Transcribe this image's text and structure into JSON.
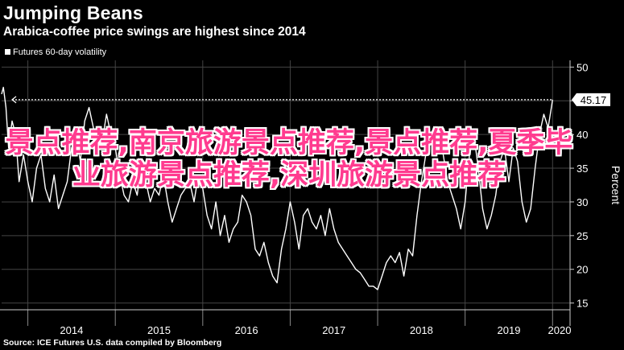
{
  "header": {
    "title": "Jumping Beans",
    "subtitle": "Arabica-coffee price swings are highest since 2014"
  },
  "footer": {
    "source": "Source: ICE Futures U.S. data compiled by Bloomberg"
  },
  "overlay_text": "景点推荐,南京旅游景点推荐,景点推荐,夏季毕业旅游景点推荐,深圳旅游景点推荐",
  "colors": {
    "background": "#000000",
    "line": "#ffffff",
    "grid": "#444444",
    "overlay": "#ff3b8f"
  },
  "chart_data": {
    "type": "line",
    "legend": [
      "Futures 60-day volatility"
    ],
    "legend_position": "top-left",
    "ylabel": "Percent",
    "ylim": [
      14,
      51
    ],
    "yticks": [
      15,
      20,
      25,
      30,
      35,
      40,
      45,
      50
    ],
    "xlim": [
      2013.7,
      2020.2
    ],
    "xticks": [
      "2014",
      "2015",
      "2016",
      "2017",
      "2018",
      "2019",
      "2020"
    ],
    "last_value_label": "45.17",
    "reference_line": 45.17,
    "grid": true,
    "series": [
      {
        "name": "Futures 60-day volatility",
        "x": [
          2013.7,
          2013.72,
          2013.75,
          2013.78,
          2013.82,
          2013.86,
          2013.9,
          2013.95,
          2014.0,
          2014.05,
          2014.1,
          2014.15,
          2014.2,
          2014.25,
          2014.3,
          2014.35,
          2014.4,
          2014.45,
          2014.5,
          2014.55,
          2014.6,
          2014.65,
          2014.7,
          2014.75,
          2014.8,
          2014.85,
          2014.9,
          2014.95,
          2015.0,
          2015.05,
          2015.1,
          2015.15,
          2015.2,
          2015.25,
          2015.3,
          2015.35,
          2015.4,
          2015.45,
          2015.5,
          2015.55,
          2015.6,
          2015.65,
          2015.7,
          2015.75,
          2015.8,
          2015.85,
          2015.9,
          2015.95,
          2016.0,
          2016.05,
          2016.1,
          2016.15,
          2016.2,
          2016.25,
          2016.3,
          2016.35,
          2016.4,
          2016.45,
          2016.5,
          2016.55,
          2016.6,
          2016.65,
          2016.7,
          2016.75,
          2016.8,
          2016.85,
          2016.9,
          2016.95,
          2017.0,
          2017.05,
          2017.1,
          2017.15,
          2017.2,
          2017.25,
          2017.3,
          2017.35,
          2017.4,
          2017.45,
          2017.5,
          2017.55,
          2017.6,
          2017.65,
          2017.7,
          2017.75,
          2017.8,
          2017.85,
          2017.9,
          2017.95,
          2018.0,
          2018.05,
          2018.1,
          2018.15,
          2018.2,
          2018.25,
          2018.3,
          2018.35,
          2018.4,
          2018.45,
          2018.5,
          2018.55,
          2018.6,
          2018.65,
          2018.7,
          2018.75,
          2018.8,
          2018.85,
          2018.9,
          2018.95,
          2019.0,
          2019.05,
          2019.1,
          2019.15,
          2019.2,
          2019.25,
          2019.3,
          2019.35,
          2019.4,
          2019.45,
          2019.5,
          2019.55,
          2019.6,
          2019.65,
          2019.7,
          2019.75,
          2019.8,
          2019.85,
          2019.9,
          2019.95,
          2020.0
        ],
        "values": [
          46,
          47,
          44,
          38,
          42,
          40,
          33,
          37,
          33,
          30,
          35,
          37,
          32,
          30,
          34,
          29,
          31,
          33,
          38,
          40,
          36,
          42,
          44,
          41,
          38,
          39,
          43,
          40,
          38,
          34,
          31,
          30,
          33,
          31,
          36,
          33,
          30,
          32,
          31,
          34,
          30,
          27,
          29,
          31,
          32,
          33,
          30,
          34,
          32,
          28,
          26,
          30,
          25,
          28,
          24,
          26,
          27,
          31,
          30,
          28,
          23,
          22,
          24,
          21,
          19,
          18,
          23,
          26,
          30,
          27,
          23,
          28,
          29,
          27,
          26,
          28,
          25,
          29,
          26,
          24,
          23,
          22,
          21,
          20,
          19.5,
          18.5,
          17.5,
          17.5,
          17,
          19,
          21,
          22,
          21,
          22.5,
          19,
          23,
          22,
          28,
          33,
          37,
          40,
          38.5,
          38.5,
          37,
          33,
          31,
          29,
          26,
          30,
          37,
          40,
          35,
          29,
          26,
          28,
          31,
          36,
          38,
          33,
          38,
          36,
          30,
          27,
          29,
          35,
          40,
          43,
          41,
          45.17
        ]
      }
    ]
  }
}
